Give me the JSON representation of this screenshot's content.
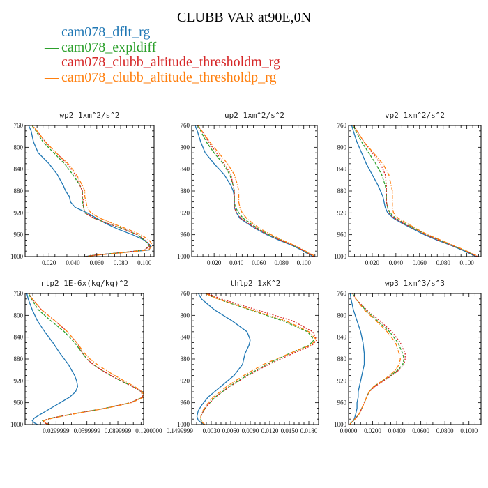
{
  "title": "CLUBB VAR at90E,0N",
  "legend": [
    {
      "label": "cam078_dflt_rg",
      "color": "#1f77b4"
    },
    {
      "label": "cam078_expldiff",
      "color": "#2ca02c"
    },
    {
      "label": "cam078_clubb_altitude_thresholdm_rg",
      "color": "#d62728"
    },
    {
      "label": "cam078_clubb_altitude_thresholdp_rg",
      "color": "#ff7f0e"
    }
  ],
  "chart_data": [
    {
      "type": "line",
      "title": "wp2   1xm^2/s^2",
      "xlim": [
        0.0,
        0.108
      ],
      "ylim": [
        760,
        1000
      ],
      "xticks": [
        "0.020",
        "0.040",
        "0.060",
        "0.080",
        "0.100"
      ],
      "xtick_values": [
        0.02,
        0.04,
        0.06,
        0.08,
        0.1
      ],
      "yticks": [
        "760",
        "800",
        "840",
        "880",
        "920",
        "960",
        "1000"
      ],
      "y": [
        755,
        770,
        790,
        810,
        830,
        850,
        870,
        880,
        890,
        900,
        910,
        920,
        930,
        940,
        950,
        960,
        970,
        980,
        988,
        993,
        997,
        1000
      ],
      "series": [
        {
          "values": [
            0.002,
            0.005,
            0.007,
            0.011,
            0.02,
            0.027,
            0.032,
            0.034,
            0.037,
            0.038,
            0.042,
            0.052,
            0.06,
            0.068,
            0.078,
            0.09,
            0.1,
            0.105,
            0.104,
            0.08,
            0.06,
            0.05
          ],
          "color": "#1f77b4",
          "dash": "none"
        },
        {
          "values": [
            0.004,
            0.009,
            0.015,
            0.024,
            0.033,
            0.04,
            0.046,
            0.048,
            0.048,
            0.048,
            0.049,
            0.05,
            0.058,
            0.07,
            0.083,
            0.094,
            0.1,
            0.104,
            0.1,
            0.08,
            0.06,
            0.05
          ],
          "color": "#2ca02c",
          "dash": "4,2"
        },
        {
          "values": [
            0.004,
            0.01,
            0.017,
            0.026,
            0.035,
            0.042,
            0.046,
            0.048,
            0.048,
            0.049,
            0.049,
            0.05,
            0.058,
            0.07,
            0.083,
            0.094,
            0.101,
            0.105,
            0.1,
            0.08,
            0.06,
            0.05
          ],
          "color": "#d62728",
          "dash": "2,2"
        },
        {
          "values": [
            0.004,
            0.01,
            0.017,
            0.026,
            0.036,
            0.043,
            0.048,
            0.05,
            0.05,
            0.051,
            0.052,
            0.055,
            0.063,
            0.074,
            0.086,
            0.097,
            0.104,
            0.107,
            0.103,
            0.082,
            0.062,
            0.052
          ],
          "color": "#ff7f0e",
          "dash": "6,2,1,2"
        }
      ]
    },
    {
      "type": "line",
      "title": "up2   1xm^2/s^2",
      "xlim": [
        0.0,
        0.112
      ],
      "ylim": [
        760,
        1000
      ],
      "xticks": [
        "0.020",
        "0.040",
        "0.060",
        "0.080",
        "0.100"
      ],
      "xtick_values": [
        0.02,
        0.04,
        0.06,
        0.08,
        0.1
      ],
      "yticks": [
        "760",
        "800",
        "840",
        "880",
        "920",
        "960",
        "1000"
      ],
      "y": [
        755,
        770,
        790,
        810,
        830,
        850,
        870,
        880,
        890,
        900,
        910,
        920,
        930,
        940,
        950,
        960,
        970,
        980,
        988,
        993,
        997,
        1000
      ],
      "series": [
        {
          "values": [
            0.002,
            0.005,
            0.008,
            0.012,
            0.02,
            0.029,
            0.035,
            0.037,
            0.038,
            0.038,
            0.038,
            0.04,
            0.043,
            0.05,
            0.058,
            0.067,
            0.078,
            0.09,
            0.098,
            0.102,
            0.106,
            0.108
          ],
          "color": "#1f77b4",
          "dash": "none"
        },
        {
          "values": [
            0.004,
            0.008,
            0.013,
            0.02,
            0.028,
            0.034,
            0.037,
            0.038,
            0.038,
            0.038,
            0.039,
            0.042,
            0.046,
            0.053,
            0.06,
            0.069,
            0.08,
            0.091,
            0.099,
            0.103,
            0.107,
            0.109
          ],
          "color": "#2ca02c",
          "dash": "4,2"
        },
        {
          "values": [
            0.004,
            0.009,
            0.015,
            0.022,
            0.029,
            0.035,
            0.037,
            0.038,
            0.038,
            0.038,
            0.038,
            0.04,
            0.044,
            0.051,
            0.059,
            0.068,
            0.079,
            0.091,
            0.099,
            0.103,
            0.107,
            0.109
          ],
          "color": "#d62728",
          "dash": "2,2"
        },
        {
          "values": [
            0.004,
            0.009,
            0.016,
            0.024,
            0.032,
            0.038,
            0.041,
            0.042,
            0.042,
            0.042,
            0.043,
            0.045,
            0.049,
            0.055,
            0.062,
            0.071,
            0.081,
            0.092,
            0.1,
            0.104,
            0.108,
            0.11
          ],
          "color": "#ff7f0e",
          "dash": "6,2,1,2"
        }
      ]
    },
    {
      "type": "line",
      "title": "vp2   1xm^2/s^2",
      "xlim": [
        0.0,
        0.112
      ],
      "ylim": [
        760,
        1000
      ],
      "xticks": [
        "0.020",
        "0.040",
        "0.060",
        "0.080",
        "0.100"
      ],
      "xtick_values": [
        0.02,
        0.04,
        0.06,
        0.08,
        0.1
      ],
      "yticks": [
        "760",
        "800",
        "840",
        "880",
        "920",
        "960",
        "1000"
      ],
      "y": [
        755,
        770,
        790,
        810,
        830,
        850,
        870,
        880,
        890,
        900,
        910,
        920,
        930,
        940,
        950,
        960,
        970,
        980,
        988,
        993,
        997,
        1000
      ],
      "series": [
        {
          "values": [
            0.002,
            0.004,
            0.007,
            0.011,
            0.015,
            0.02,
            0.025,
            0.027,
            0.029,
            0.03,
            0.031,
            0.033,
            0.038,
            0.046,
            0.055,
            0.064,
            0.075,
            0.087,
            0.096,
            0.101,
            0.105,
            0.108
          ],
          "color": "#1f77b4",
          "dash": "none"
        },
        {
          "values": [
            0.003,
            0.006,
            0.011,
            0.017,
            0.023,
            0.028,
            0.031,
            0.032,
            0.032,
            0.032,
            0.033,
            0.035,
            0.04,
            0.048,
            0.057,
            0.066,
            0.077,
            0.088,
            0.097,
            0.102,
            0.106,
            0.109
          ],
          "color": "#2ca02c",
          "dash": "4,2"
        },
        {
          "values": [
            0.003,
            0.007,
            0.013,
            0.02,
            0.027,
            0.031,
            0.032,
            0.032,
            0.032,
            0.032,
            0.033,
            0.034,
            0.039,
            0.047,
            0.056,
            0.065,
            0.076,
            0.088,
            0.097,
            0.102,
            0.106,
            0.109
          ],
          "color": "#d62728",
          "dash": "2,2"
        },
        {
          "values": [
            0.003,
            0.007,
            0.013,
            0.021,
            0.029,
            0.034,
            0.036,
            0.037,
            0.037,
            0.037,
            0.037,
            0.038,
            0.042,
            0.05,
            0.058,
            0.067,
            0.078,
            0.089,
            0.098,
            0.103,
            0.107,
            0.11
          ],
          "color": "#ff7f0e",
          "dash": "6,2,1,2"
        }
      ]
    },
    {
      "type": "line",
      "title": "rtp2   1E-6x(kg/kg)^2",
      "xlim": [
        0.0,
        0.115
      ],
      "ylim": [
        760,
        1000
      ],
      "xticks": [
        "0.0299999",
        "0.0599999",
        "0.0899999",
        "0.1200000",
        "0.1499999"
      ],
      "xtick_values": [
        0.0299999,
        0.0599999,
        0.0899999,
        0.12,
        0.1499999
      ],
      "yticks": [
        "760",
        "800",
        "840",
        "880",
        "920",
        "960",
        "1000"
      ],
      "y": [
        755,
        770,
        790,
        810,
        830,
        850,
        870,
        880,
        890,
        900,
        910,
        920,
        930,
        940,
        950,
        960,
        970,
        980,
        988,
        993,
        997,
        1000
      ],
      "series": [
        {
          "values": [
            0.001,
            0.003,
            0.007,
            0.012,
            0.019,
            0.027,
            0.034,
            0.038,
            0.042,
            0.045,
            0.048,
            0.05,
            0.051,
            0.049,
            0.043,
            0.034,
            0.025,
            0.016,
            0.009,
            0.007,
            0.009,
            0.012
          ],
          "color": "#1f77b4",
          "dash": "none"
        },
        {
          "values": [
            0.002,
            0.006,
            0.013,
            0.025,
            0.038,
            0.048,
            0.056,
            0.06,
            0.066,
            0.074,
            0.083,
            0.093,
            0.104,
            0.113,
            0.114,
            0.102,
            0.078,
            0.048,
            0.026,
            0.017,
            0.019,
            0.023
          ],
          "color": "#2ca02c",
          "dash": "4,2"
        },
        {
          "values": [
            0.002,
            0.007,
            0.016,
            0.029,
            0.041,
            0.05,
            0.056,
            0.06,
            0.066,
            0.074,
            0.083,
            0.093,
            0.104,
            0.113,
            0.114,
            0.102,
            0.078,
            0.048,
            0.026,
            0.017,
            0.019,
            0.023
          ],
          "color": "#d62728",
          "dash": "2,2"
        },
        {
          "values": [
            0.002,
            0.007,
            0.016,
            0.029,
            0.041,
            0.05,
            0.058,
            0.063,
            0.07,
            0.078,
            0.087,
            0.096,
            0.106,
            0.114,
            0.115,
            0.103,
            0.079,
            0.049,
            0.027,
            0.018,
            0.02,
            0.024
          ],
          "color": "#ff7f0e",
          "dash": "6,2,1,2"
        }
      ]
    },
    {
      "type": "line",
      "title": "thlp2   1xK^2",
      "xlim": [
        0.0,
        0.0195
      ],
      "ylim": [
        760,
        1000
      ],
      "xticks": [
        "0.0030",
        "0.0060",
        "0.0090",
        "0.0120",
        "0.0150",
        "0.0180"
      ],
      "xtick_values": [
        0.003,
        0.006,
        0.009,
        0.012,
        0.015,
        0.018
      ],
      "yticks": [
        "760",
        "800",
        "840",
        "880",
        "920",
        "960",
        "1000"
      ],
      "y": [
        755,
        770,
        790,
        810,
        830,
        845,
        855,
        870,
        890,
        910,
        930,
        950,
        965,
        975,
        985,
        992,
        997,
        1000
      ],
      "series": [
        {
          "values": [
            0.0008,
            0.0015,
            0.0035,
            0.0062,
            0.0085,
            0.009,
            0.0088,
            0.0082,
            0.0078,
            0.0065,
            0.0045,
            0.0025,
            0.0015,
            0.001,
            0.0008,
            0.001,
            0.0015,
            0.002
          ],
          "color": "#1f77b4",
          "dash": "none"
        },
        {
          "values": [
            0.0012,
            0.004,
            0.009,
            0.014,
            0.0178,
            0.0188,
            0.018,
            0.015,
            0.0115,
            0.0085,
            0.0058,
            0.0036,
            0.0024,
            0.0018,
            0.0014,
            0.0014,
            0.0017,
            0.002
          ],
          "color": "#2ca02c",
          "dash": "4,2"
        },
        {
          "values": [
            0.0014,
            0.0045,
            0.01,
            0.0155,
            0.0186,
            0.0192,
            0.0185,
            0.0155,
            0.0118,
            0.0087,
            0.0059,
            0.0036,
            0.0024,
            0.0018,
            0.0014,
            0.0014,
            0.0017,
            0.002
          ],
          "color": "#d62728",
          "dash": "2,2"
        },
        {
          "values": [
            0.0012,
            0.004,
            0.0092,
            0.0145,
            0.018,
            0.0192,
            0.0182,
            0.015,
            0.011,
            0.008,
            0.0054,
            0.0033,
            0.0022,
            0.0017,
            0.0014,
            0.0014,
            0.0017,
            0.002
          ],
          "color": "#ff7f0e",
          "dash": "6,2,1,2"
        }
      ]
    },
    {
      "type": "line",
      "title": "wp3   1xm^3/s^3",
      "xlim": [
        0.0,
        0.11
      ],
      "ylim": [
        760,
        1000
      ],
      "xticks": [
        "0.0000",
        "0.0200",
        "0.0400",
        "0.0600",
        "0.0800",
        "0.1000"
      ],
      "xtick_values": [
        0.0,
        0.02,
        0.04,
        0.06,
        0.08,
        0.1
      ],
      "yticks": [
        "760",
        "800",
        "840",
        "880",
        "920",
        "960",
        "1000"
      ],
      "y": [
        755,
        770,
        790,
        810,
        830,
        850,
        870,
        880,
        890,
        900,
        910,
        920,
        930,
        940,
        950,
        960,
        970,
        980,
        988,
        993,
        997,
        1000
      ],
      "series": [
        {
          "values": [
            0.001,
            0.002,
            0.004,
            0.007,
            0.01,
            0.012,
            0.013,
            0.013,
            0.013,
            0.012,
            0.011,
            0.01,
            0.009,
            0.008,
            0.008,
            0.007,
            0.007,
            0.006,
            0.005,
            0.004,
            0.002,
            0.001
          ],
          "color": "#1f77b4",
          "dash": "none"
        },
        {
          "values": [
            0.002,
            0.006,
            0.014,
            0.024,
            0.034,
            0.041,
            0.045,
            0.046,
            0.045,
            0.041,
            0.035,
            0.028,
            0.021,
            0.017,
            0.015,
            0.013,
            0.011,
            0.009,
            0.006,
            0.004,
            0.002,
            0.001
          ],
          "color": "#2ca02c",
          "dash": "4,2"
        },
        {
          "values": [
            0.002,
            0.006,
            0.015,
            0.026,
            0.036,
            0.043,
            0.047,
            0.047,
            0.046,
            0.042,
            0.036,
            0.029,
            0.022,
            0.017,
            0.015,
            0.013,
            0.011,
            0.009,
            0.006,
            0.004,
            0.002,
            0.001
          ],
          "color": "#d62728",
          "dash": "2,2"
        },
        {
          "values": [
            0.002,
            0.006,
            0.013,
            0.023,
            0.032,
            0.039,
            0.042,
            0.043,
            0.042,
            0.039,
            0.034,
            0.028,
            0.021,
            0.017,
            0.015,
            0.013,
            0.011,
            0.009,
            0.006,
            0.004,
            0.002,
            0.001
          ],
          "color": "#ff7f0e",
          "dash": "6,2,1,2"
        }
      ]
    }
  ]
}
